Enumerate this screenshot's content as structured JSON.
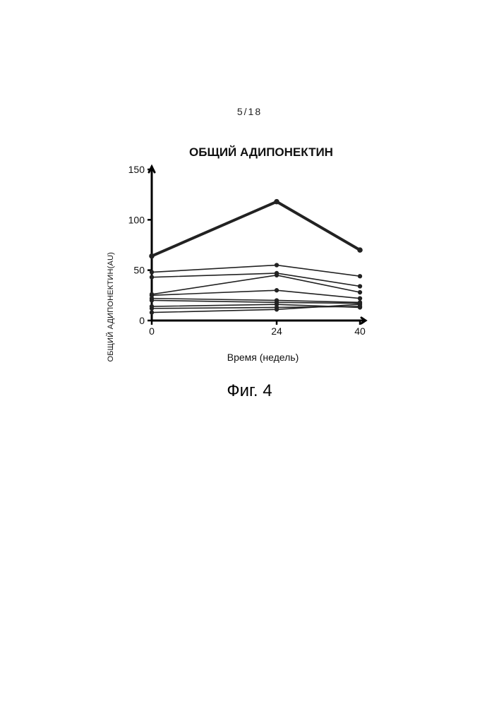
{
  "page_number": "5/18",
  "figure_caption": "Фиг. 4",
  "chart": {
    "type": "line",
    "title": "ОБЩИЙ АДИПОНЕКТИН",
    "xlabel": "Время (недель)",
    "ylabel": "ОБЩИЙ АДИПОНЕКТИН(AU)",
    "xlim": [
      0,
      40
    ],
    "ylim": [
      0,
      150
    ],
    "xticks": [
      0,
      24,
      40
    ],
    "xtick_labels": [
      "0",
      "24",
      "40"
    ],
    "yticks": [
      0,
      50,
      100,
      150
    ],
    "ytick_labels": [
      "0",
      "50",
      "100",
      "150"
    ],
    "background_color": "#ffffff",
    "axis_color": "#000000",
    "axis_width": 3,
    "tick_length": 6,
    "tick_width": 2.5,
    "title_fontsize": 17,
    "label_fontsize": 13,
    "tick_fontsize": 14,
    "bold_series_index": 0,
    "bold_line_width": 4,
    "normal_line_width": 1.6,
    "marker_size": 4.2,
    "marker_shape": "circle",
    "line_color": "#222222",
    "marker_color": "#222222",
    "series": [
      {
        "x": [
          0,
          24,
          40
        ],
        "y": [
          64,
          118,
          70
        ]
      },
      {
        "x": [
          0,
          24,
          40
        ],
        "y": [
          48,
          55,
          44
        ]
      },
      {
        "x": [
          0,
          24,
          40
        ],
        "y": [
          43,
          47,
          34
        ]
      },
      {
        "x": [
          0,
          24,
          40
        ],
        "y": [
          26,
          45,
          28
        ]
      },
      {
        "x": [
          0,
          24,
          40
        ],
        "y": [
          25,
          30,
          22
        ]
      },
      {
        "x": [
          0,
          24,
          40
        ],
        "y": [
          22,
          20,
          18
        ]
      },
      {
        "x": [
          0,
          24,
          40
        ],
        "y": [
          20,
          18,
          17
        ]
      },
      {
        "x": [
          0,
          24,
          40
        ],
        "y": [
          14,
          16,
          13
        ]
      },
      {
        "x": [
          0,
          24,
          40
        ],
        "y": [
          12,
          13,
          14
        ]
      },
      {
        "x": [
          0,
          24,
          40
        ],
        "y": [
          8,
          11,
          16
        ]
      }
    ]
  }
}
